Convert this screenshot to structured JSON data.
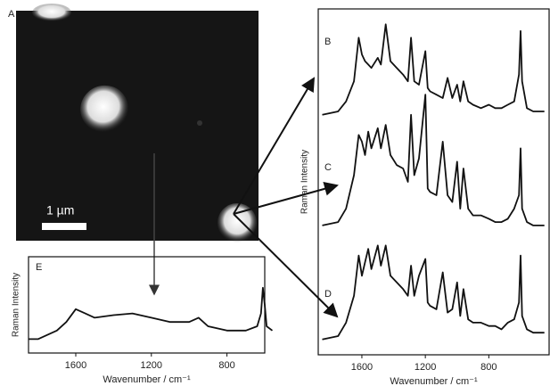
{
  "image": {
    "label": "A",
    "scale_bar": "1 µm"
  },
  "chart_data": [
    {
      "type": "line",
      "panel_label": "E",
      "ylabel": "Raman Intensity",
      "xlabel": "Wavenumber / cm⁻¹",
      "x": [
        1850,
        1800,
        1700,
        1650,
        1600,
        1550,
        1500,
        1400,
        1300,
        1200,
        1100,
        1000,
        950,
        900,
        800,
        700,
        640,
        620,
        610,
        600,
        590,
        560
      ],
      "series": [
        {
          "name": null,
          "color": "#111111",
          "values": [
            1,
            1,
            2,
            3,
            4.5,
            4,
            3.5,
            3.8,
            4,
            3.5,
            3,
            3,
            3.5,
            2.5,
            2,
            2,
            2.5,
            4,
            7,
            5,
            2.5,
            2
          ]
        }
      ],
      "xlim": [
        1850,
        600
      ],
      "xticks": [
        1600,
        1200,
        800
      ],
      "ylim": [
        0,
        10
      ]
    },
    {
      "type": "line",
      "ylabel": "Raman Intensity",
      "xlabel": "Wavenumber / cm⁻¹",
      "x": [
        1850,
        1750,
        1700,
        1650,
        1620,
        1600,
        1580,
        1560,
        1540,
        1500,
        1480,
        1450,
        1420,
        1380,
        1340,
        1310,
        1290,
        1270,
        1240,
        1200,
        1185,
        1170,
        1130,
        1090,
        1060,
        1030,
        1000,
        980,
        960,
        930,
        900,
        850,
        800,
        760,
        720,
        680,
        640,
        610,
        600,
        590,
        560,
        520,
        480,
        450
      ],
      "series": [
        {
          "name": "B",
          "color": "#111111",
          "values": [
            70,
            71,
            74,
            80,
            93,
            88,
            86,
            85,
            84,
            87,
            85,
            97,
            86,
            84,
            82,
            80,
            93,
            80,
            79,
            89,
            78,
            77,
            76,
            75,
            81,
            75,
            79,
            74,
            80,
            74,
            73,
            72,
            73,
            72,
            72,
            73,
            74,
            82,
            95,
            80,
            72,
            71,
            71,
            71
          ]
        },
        {
          "name": "C",
          "color": "#111111",
          "values": [
            37,
            38,
            42,
            52,
            64,
            62,
            58,
            65,
            60,
            66,
            60,
            67,
            58,
            55,
            54,
            50,
            70,
            52,
            57,
            76,
            48,
            47,
            46,
            62,
            46,
            44,
            56,
            42,
            54,
            42,
            40,
            40,
            39,
            38,
            38,
            39,
            42,
            46,
            60,
            42,
            38,
            37,
            37,
            37
          ]
        },
        {
          "name": "D",
          "color": "#111111",
          "values": [
            3,
            4,
            8,
            16,
            28,
            22,
            26,
            30,
            24,
            31,
            25,
            31,
            22,
            20,
            18,
            16,
            25,
            16,
            22,
            27,
            14,
            13,
            12,
            23,
            11,
            12,
            20,
            10,
            18,
            9,
            8,
            8,
            7,
            7,
            6,
            8,
            9,
            14,
            28,
            10,
            6,
            5,
            5,
            5
          ]
        }
      ],
      "xlim": [
        1875,
        420
      ],
      "xticks": [
        1600,
        1200,
        800
      ],
      "ylim": [
        0,
        100
      ]
    }
  ]
}
